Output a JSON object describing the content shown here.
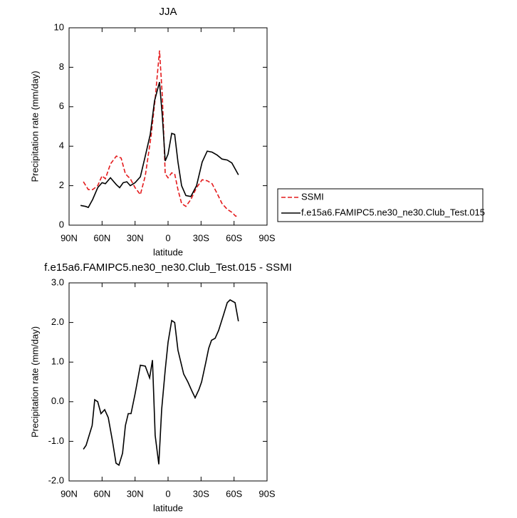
{
  "chart_data": [
    {
      "type": "line",
      "title": "JJA",
      "x_label": "latitude",
      "y_label": "Precipitation rate (mm/day)",
      "xlim": [
        90,
        -90
      ],
      "ylim": [
        0,
        10
      ],
      "xticks": [
        {
          "value": 90,
          "label": "90N"
        },
        {
          "value": 60,
          "label": "60N"
        },
        {
          "value": 30,
          "label": "30N"
        },
        0,
        {
          "value": -30,
          "label": "30S"
        },
        {
          "value": -60,
          "label": "60S"
        },
        {
          "value": -90,
          "label": "90S"
        }
      ],
      "yticks": [
        0,
        2,
        4,
        6,
        8,
        10
      ],
      "legend": "right",
      "series": [
        {
          "name": "SSMI",
          "color": "#e41a1c",
          "dash": true,
          "x": [
            77,
            72.5,
            68.6,
            64,
            60,
            57,
            52.4,
            47,
            42.7,
            38.8,
            34.3,
            30,
            25.2,
            20.7,
            15.5,
            11.7,
            7.8,
            5.2,
            2.6,
            0,
            -3.3,
            -6,
            -9,
            -12.3,
            -16.2,
            -20.7,
            -25.9,
            -31,
            -35.6,
            -40,
            -44.7,
            -49,
            -53.8,
            -58,
            -61.5,
            -64
          ],
          "values": [
            2.2,
            1.8,
            1.8,
            2.0,
            2.5,
            2.35,
            3.1,
            3.5,
            3.4,
            2.6,
            2.35,
            1.9,
            1.55,
            2.5,
            4.5,
            6.4,
            8.85,
            6.5,
            2.6,
            2.4,
            2.65,
            2.6,
            1.8,
            1.1,
            0.95,
            1.3,
            1.9,
            2.3,
            2.25,
            2.1,
            1.6,
            1.1,
            0.8,
            0.65,
            0.45,
            0.5
          ]
        },
        {
          "name": "f.e15a6.FAMIPC5.ne30_ne30.Club_Test.015",
          "color": "#000000",
          "dash": false,
          "x": [
            79.6,
            75,
            72.5,
            68.6,
            64,
            60,
            57,
            52.4,
            47,
            44,
            40.8,
            37.5,
            34.3,
            30,
            25.2,
            20.7,
            16.2,
            12.3,
            7.8,
            5.2,
            2.6,
            0,
            -3.3,
            -6,
            -9,
            -12.3,
            -16.2,
            -20.7,
            -25.9,
            -31,
            -35.6,
            -40,
            -44.7,
            -49,
            -53.8,
            -58,
            -64
          ],
          "values": [
            1.0,
            0.95,
            0.9,
            1.3,
            1.9,
            2.15,
            2.1,
            2.4,
            2.05,
            1.9,
            2.15,
            2.2,
            2.0,
            2.15,
            2.45,
            3.5,
            4.6,
            6.3,
            7.25,
            5.5,
            3.25,
            3.6,
            4.65,
            4.6,
            3.2,
            2.0,
            1.5,
            1.45,
            2.0,
            3.2,
            3.75,
            3.7,
            3.55,
            3.35,
            3.3,
            3.15,
            2.55
          ]
        }
      ]
    },
    {
      "type": "line",
      "title": "f.e15a6.FAMIPC5.ne30_ne30.Club_Test.015 - SSMI",
      "x_label": "latitude",
      "y_label": "Precipitation rate (mm/day)",
      "xlim": [
        90,
        -90
      ],
      "ylim": [
        -2,
        3
      ],
      "xticks": [
        {
          "value": 90,
          "label": "90N"
        },
        {
          "value": 60,
          "label": "60N"
        },
        {
          "value": 30,
          "label": "30N"
        },
        0,
        {
          "value": -30,
          "label": "30S"
        },
        {
          "value": -60,
          "label": "60S"
        },
        {
          "value": -90,
          "label": "90S"
        }
      ],
      "yticks": [
        {
          "value": -2,
          "label": "-2.0"
        },
        {
          "value": -1,
          "label": "-1.0"
        },
        {
          "value": 0,
          "label": "0.0"
        },
        {
          "value": 1,
          "label": "1.0"
        },
        {
          "value": 2,
          "label": "2.0"
        },
        {
          "value": 3,
          "label": "3.0"
        }
      ],
      "series": [
        {
          "color": "#000000",
          "dash": false,
          "x": [
            77,
            74.5,
            69,
            66.7,
            64,
            61,
            57.6,
            54.4,
            50.5,
            47.3,
            44.7,
            41.4,
            38.8,
            36.2,
            33.7,
            30,
            25.2,
            20.7,
            16.8,
            14.2,
            11.7,
            8.4,
            5.8,
            2.6,
            0,
            -3.3,
            -6,
            -9,
            -14.2,
            -18,
            -22,
            -24.6,
            -28,
            -30.5,
            -34.4,
            -37,
            -39.5,
            -42.8,
            -46,
            -50.5,
            -53.8,
            -56.4,
            -60.9,
            -64
          ],
          "values": [
            -1.2,
            -1.1,
            -0.6,
            0.05,
            0.0,
            -0.3,
            -0.2,
            -0.4,
            -1.0,
            -1.55,
            -1.6,
            -1.3,
            -0.6,
            -0.3,
            -0.3,
            0.2,
            0.92,
            0.9,
            0.6,
            1.05,
            -0.85,
            -1.58,
            -0.2,
            0.8,
            1.5,
            2.05,
            2.0,
            1.3,
            0.7,
            0.5,
            0.25,
            0.1,
            0.3,
            0.5,
            1.0,
            1.35,
            1.55,
            1.6,
            1.8,
            2.2,
            2.5,
            2.57,
            2.5,
            2.03
          ]
        }
      ]
    }
  ]
}
